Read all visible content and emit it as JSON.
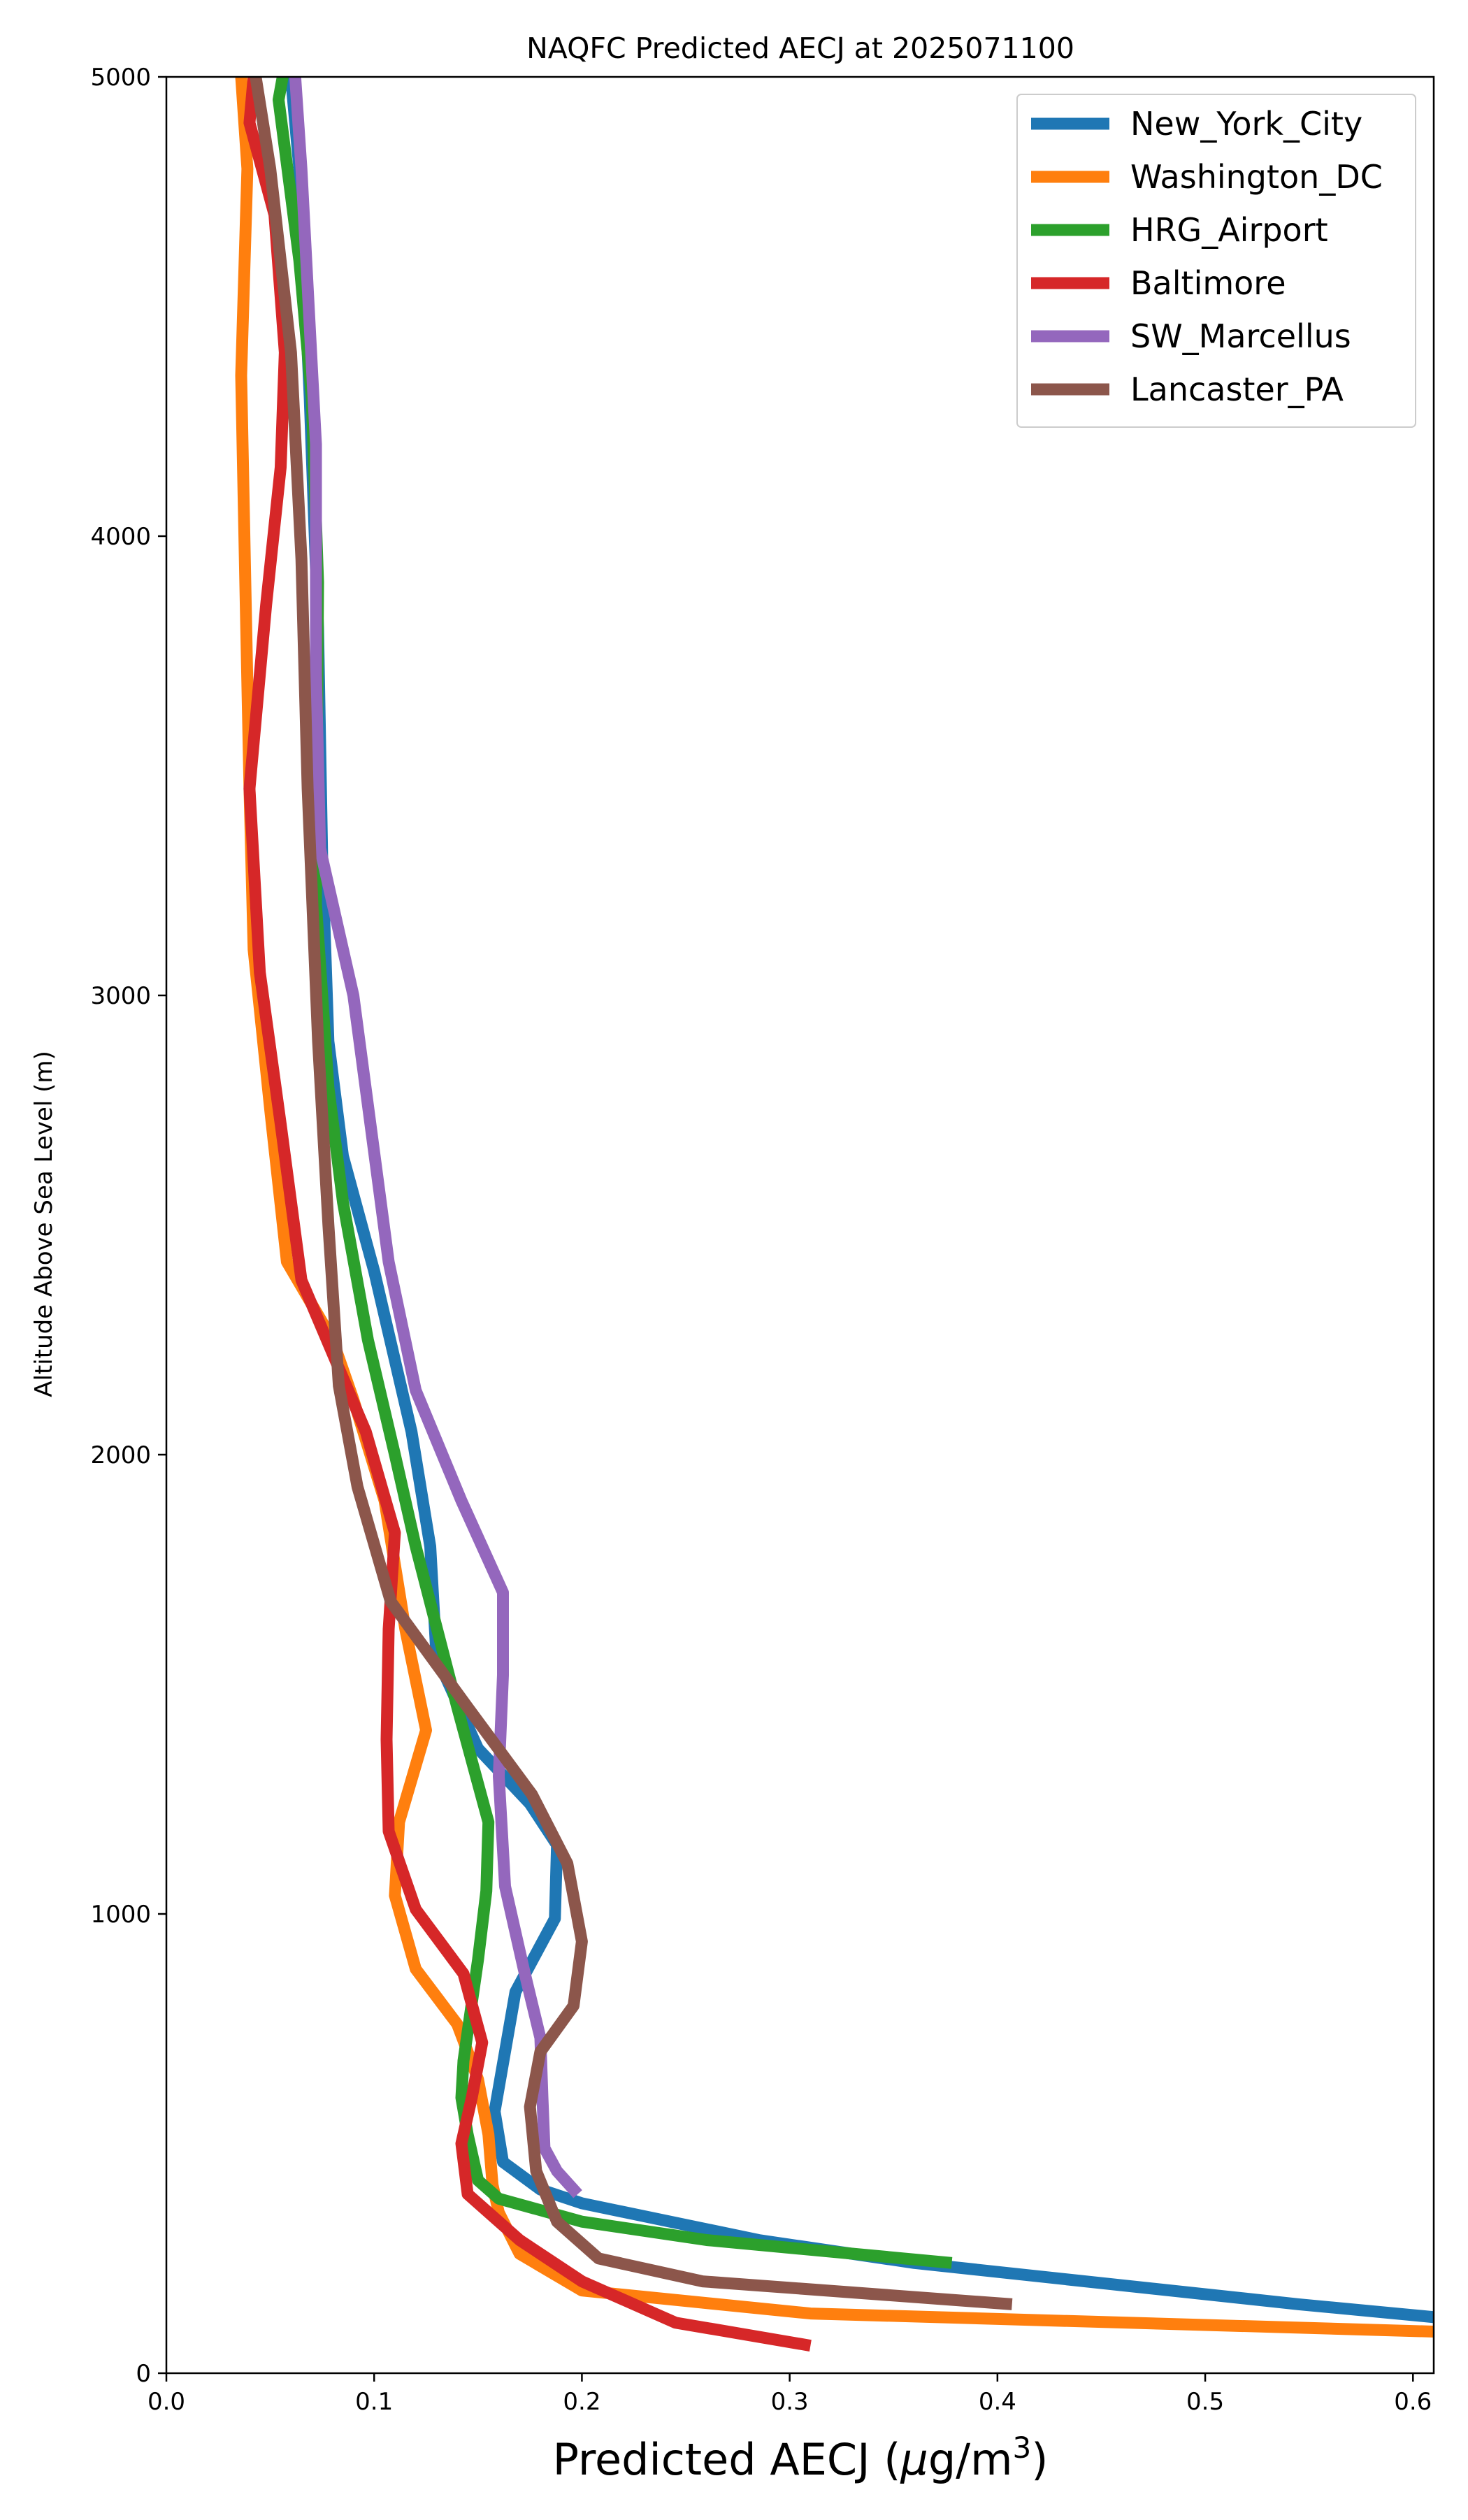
{
  "chart_data": {
    "type": "line",
    "title": "NAQFC Predicted AECJ at 2025071100",
    "xlabel": "Predicted AECJ (μg/m³)",
    "xlabel_parts": {
      "main": "Predicted AECJ (",
      "mu": "μ",
      "unit": "g/m",
      "sup": "3",
      "close": ")"
    },
    "ylabel": "Altitude Above Sea Level (m)",
    "xlim": [
      0.0,
      0.61
    ],
    "ylim": [
      0,
      5000
    ],
    "xticks": [
      "0.0",
      "0.1",
      "0.2",
      "0.3",
      "0.4",
      "0.5",
      "0.6"
    ],
    "yticks": [
      "0",
      "1000",
      "2000",
      "3000",
      "4000",
      "5000"
    ],
    "grid": false,
    "legend_position": "top-right",
    "series": [
      {
        "name": "New_York_City",
        "color": "#1f77b4",
        "points": [
          [
            0.615,
            120
          ],
          [
            0.545,
            150
          ],
          [
            0.36,
            240
          ],
          [
            0.285,
            290
          ],
          [
            0.2,
            370
          ],
          [
            0.18,
            400
          ],
          [
            0.162,
            460
          ],
          [
            0.158,
            570
          ],
          [
            0.168,
            830
          ],
          [
            0.187,
            990
          ],
          [
            0.188,
            1150
          ],
          [
            0.175,
            1240
          ],
          [
            0.15,
            1360
          ],
          [
            0.13,
            1560
          ],
          [
            0.127,
            1800
          ],
          [
            0.118,
            2050
          ],
          [
            0.1,
            2400
          ],
          [
            0.085,
            2650
          ],
          [
            0.078,
            2900
          ],
          [
            0.075,
            3300
          ],
          [
            0.073,
            3800
          ],
          [
            0.069,
            4300
          ],
          [
            0.064,
            4800
          ],
          [
            0.06,
            5000
          ]
        ]
      },
      {
        "name": "Washington_DC",
        "color": "#ff7f0e",
        "points": [
          [
            0.615,
            90
          ],
          [
            0.31,
            130
          ],
          [
            0.2,
            180
          ],
          [
            0.17,
            260
          ],
          [
            0.16,
            350
          ],
          [
            0.157,
            410
          ],
          [
            0.155,
            520
          ],
          [
            0.15,
            640
          ],
          [
            0.14,
            760
          ],
          [
            0.12,
            880
          ],
          [
            0.11,
            1040
          ],
          [
            0.112,
            1200
          ],
          [
            0.125,
            1400
          ],
          [
            0.115,
            1620
          ],
          [
            0.105,
            1900
          ],
          [
            0.09,
            2120
          ],
          [
            0.08,
            2250
          ],
          [
            0.058,
            2420
          ],
          [
            0.05,
            2750
          ],
          [
            0.042,
            3100
          ],
          [
            0.04,
            3450
          ],
          [
            0.038,
            3900
          ],
          [
            0.036,
            4350
          ],
          [
            0.039,
            4800
          ],
          [
            0.036,
            5000
          ]
        ]
      },
      {
        "name": "HRG_Airport",
        "color": "#2ca02c",
        "points": [
          [
            0.378,
            240
          ],
          [
            0.26,
            290
          ],
          [
            0.2,
            330
          ],
          [
            0.16,
            380
          ],
          [
            0.15,
            420
          ],
          [
            0.145,
            520
          ],
          [
            0.142,
            600
          ],
          [
            0.143,
            680
          ],
          [
            0.15,
            900
          ],
          [
            0.154,
            1050
          ],
          [
            0.155,
            1200
          ],
          [
            0.14,
            1450
          ],
          [
            0.12,
            1800
          ],
          [
            0.11,
            2000
          ],
          [
            0.097,
            2250
          ],
          [
            0.085,
            2550
          ],
          [
            0.078,
            2800
          ],
          [
            0.072,
            3200
          ],
          [
            0.073,
            3900
          ],
          [
            0.07,
            4300
          ],
          [
            0.064,
            4600
          ],
          [
            0.054,
            4950
          ],
          [
            0.056,
            5000
          ]
        ]
      },
      {
        "name": "Baltimore",
        "color": "#d62728",
        "points": [
          [
            0.31,
            60
          ],
          [
            0.245,
            110
          ],
          [
            0.2,
            200
          ],
          [
            0.17,
            290
          ],
          [
            0.145,
            390
          ],
          [
            0.142,
            500
          ],
          [
            0.147,
            600
          ],
          [
            0.152,
            720
          ],
          [
            0.143,
            870
          ],
          [
            0.12,
            1010
          ],
          [
            0.107,
            1180
          ],
          [
            0.106,
            1380
          ],
          [
            0.107,
            1620
          ],
          [
            0.11,
            1830
          ],
          [
            0.096,
            2050
          ],
          [
            0.065,
            2380
          ],
          [
            0.055,
            2720
          ],
          [
            0.045,
            3050
          ],
          [
            0.04,
            3450
          ],
          [
            0.048,
            3850
          ],
          [
            0.055,
            4150
          ],
          [
            0.057,
            4400
          ],
          [
            0.052,
            4700
          ],
          [
            0.04,
            4900
          ],
          [
            0.042,
            5000
          ]
        ]
      },
      {
        "name": "SW_Marcellus",
        "color": "#9467bd",
        "points": [
          [
            0.198,
            390
          ],
          [
            0.188,
            440
          ],
          [
            0.182,
            490
          ],
          [
            0.181,
            600
          ],
          [
            0.18,
            730
          ],
          [
            0.172,
            880
          ],
          [
            0.163,
            1060
          ],
          [
            0.16,
            1300
          ],
          [
            0.162,
            1520
          ],
          [
            0.162,
            1700
          ],
          [
            0.142,
            1900
          ],
          [
            0.12,
            2140
          ],
          [
            0.107,
            2420
          ],
          [
            0.09,
            3000
          ],
          [
            0.074,
            3320
          ],
          [
            0.072,
            3700
          ],
          [
            0.072,
            4200
          ],
          [
            0.065,
            4800
          ],
          [
            0.062,
            5000
          ]
        ]
      },
      {
        "name": "Lancaster_PA",
        "color": "#8c564b",
        "points": [
          [
            0.407,
            150
          ],
          [
            0.258,
            200
          ],
          [
            0.208,
            250
          ],
          [
            0.188,
            330
          ],
          [
            0.178,
            440
          ],
          [
            0.175,
            580
          ],
          [
            0.18,
            700
          ],
          [
            0.196,
            800
          ],
          [
            0.2,
            940
          ],
          [
            0.193,
            1110
          ],
          [
            0.176,
            1260
          ],
          [
            0.145,
            1450
          ],
          [
            0.108,
            1680
          ],
          [
            0.092,
            1930
          ],
          [
            0.083,
            2150
          ],
          [
            0.078,
            2500
          ],
          [
            0.073,
            2900
          ],
          [
            0.068,
            3450
          ],
          [
            0.065,
            3950
          ],
          [
            0.06,
            4400
          ],
          [
            0.05,
            4800
          ],
          [
            0.043,
            5000
          ]
        ]
      }
    ]
  }
}
